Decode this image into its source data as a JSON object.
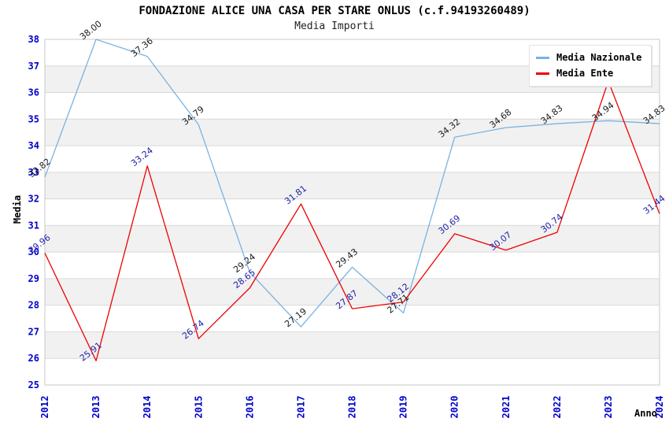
{
  "header": {
    "title": "FONDAZIONE ALICE UNA CASA PER STARE ONLUS (c.f.94193260489)",
    "subtitle": "Media Importi"
  },
  "chart_data": {
    "type": "line",
    "title": "FONDAZIONE ALICE UNA CASA PER STARE ONLUS (c.f.94193260489)",
    "subtitle": "Media Importi",
    "xlabel": "Anno",
    "ylabel": "Media",
    "ylim": [
      25,
      38
    ],
    "ytick_step": 1,
    "grid": true,
    "legend_position": "top-right",
    "categories": [
      "2012",
      "2013",
      "2014",
      "2015",
      "2016",
      "2017",
      "2018",
      "2019",
      "2020",
      "2021",
      "2022",
      "2023",
      "2024"
    ],
    "series": [
      {
        "name": "Media Nazionale",
        "color": "#79b2e1",
        "label_color": "#1a1a1a",
        "values": [
          32.82,
          38.0,
          37.36,
          34.79,
          29.24,
          27.19,
          29.43,
          27.71,
          34.32,
          34.68,
          34.83,
          34.94,
          34.83
        ],
        "labels": [
          "32.82",
          "38.00",
          "37.36",
          "34.79",
          "29.24",
          "27.19",
          "29.43",
          "27.71",
          "34.32",
          "34.68",
          "34.83",
          "34.94",
          "34.83"
        ]
      },
      {
        "name": "Media Ente",
        "color": "#ee0000",
        "label_color": "#2222aa",
        "values": [
          29.96,
          25.91,
          33.24,
          26.74,
          28.65,
          31.81,
          27.87,
          28.12,
          30.69,
          30.07,
          30.74,
          36.43,
          31.44
        ],
        "labels": [
          "29.96",
          "25.91",
          "33.24",
          "26.74",
          "28.65",
          "31.81",
          "27.87",
          "28.12",
          "30.69",
          "30.07",
          "30.74",
          null,
          "31.44"
        ]
      }
    ],
    "colors": {
      "axis_tick_labels": "#0000cc",
      "band_fill": "#f1f1f1",
      "gridline": "#d9d9d9",
      "plot_border": "#c9c9c9"
    }
  }
}
